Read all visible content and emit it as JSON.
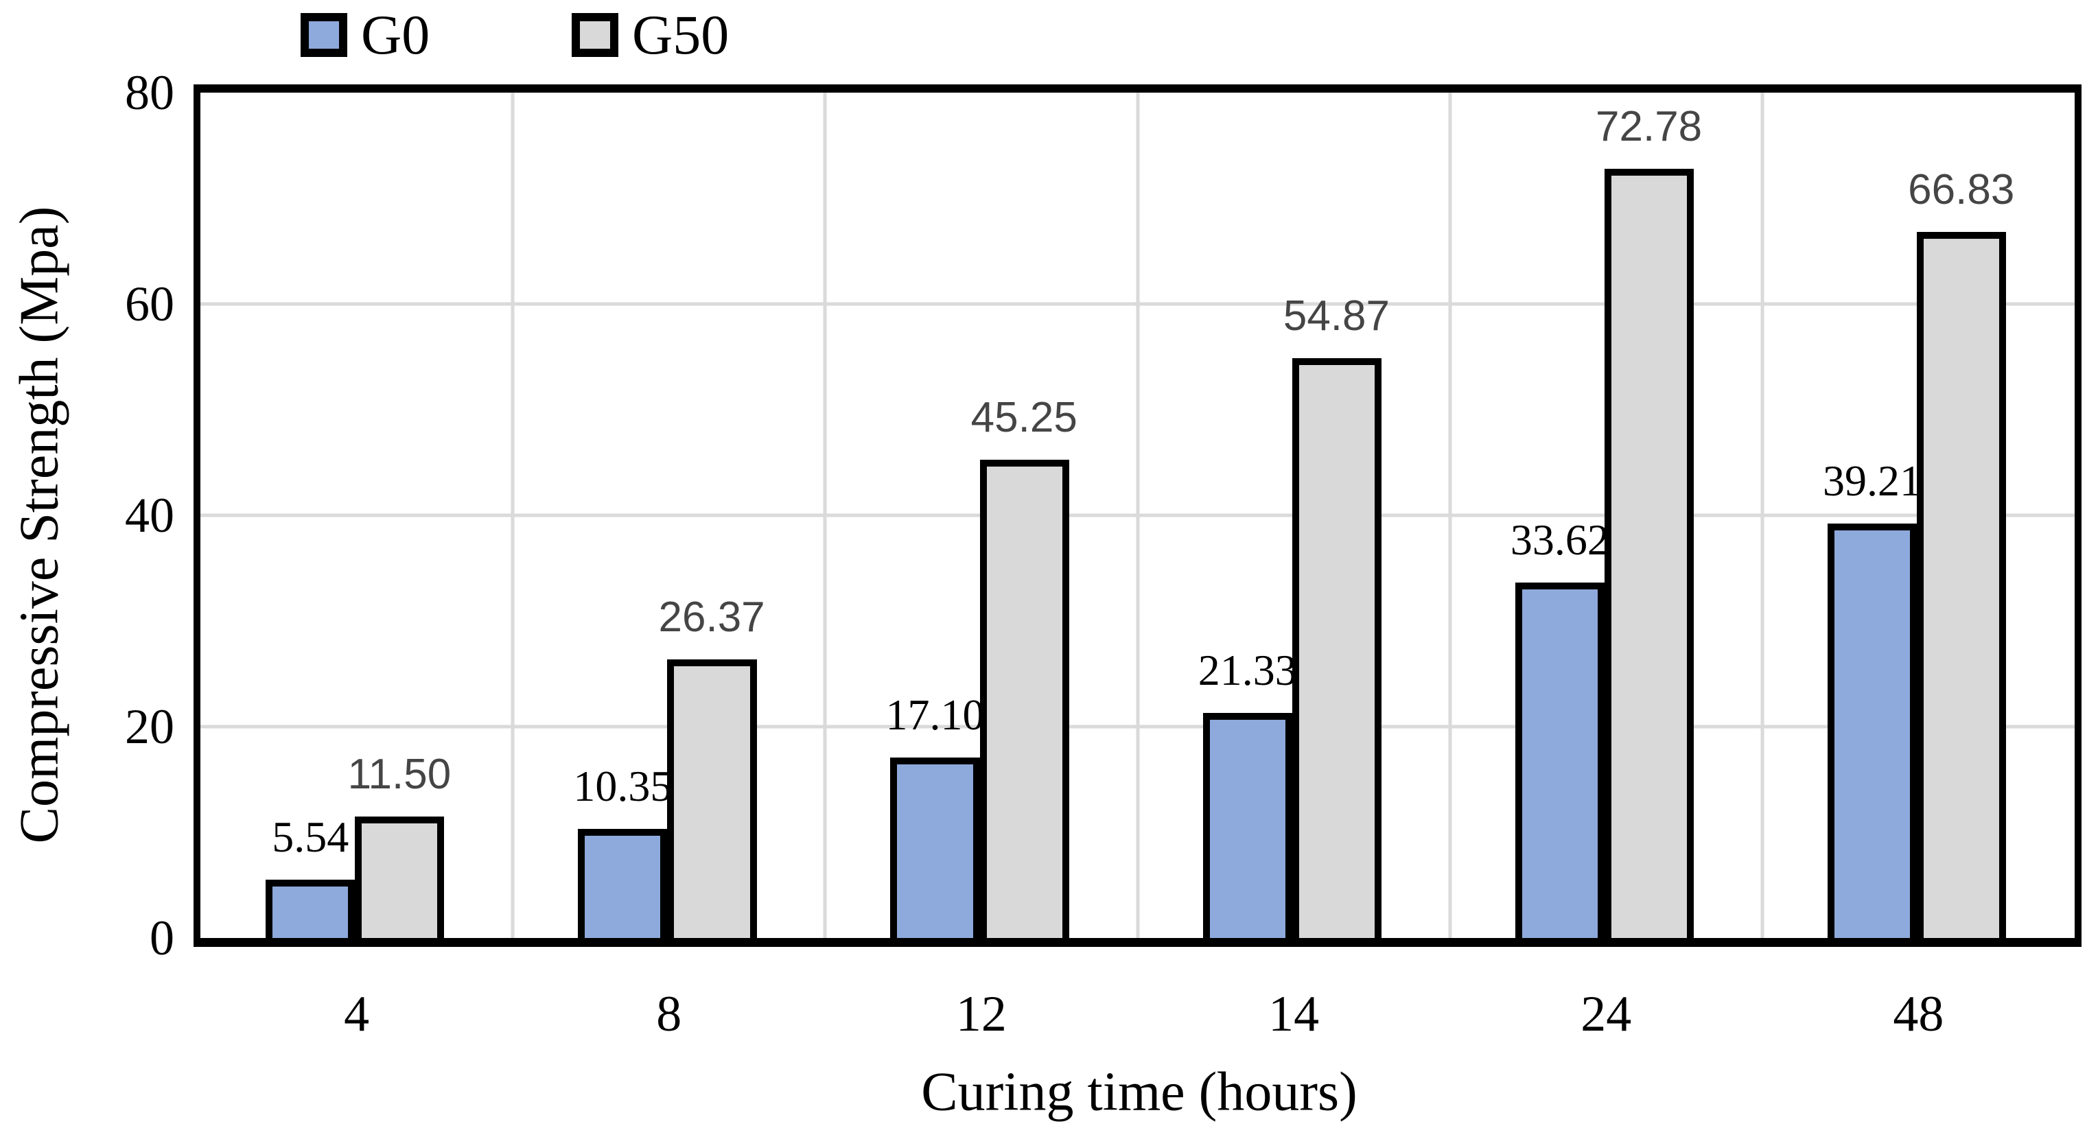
{
  "chart_data": {
    "type": "bar",
    "title": "",
    "xlabel": "Curing time (hours)",
    "ylabel": "Compressive Strength (Mpa)",
    "ylim": [
      0,
      80
    ],
    "yticks": [
      0,
      20,
      40,
      60,
      80
    ],
    "grid": true,
    "legend_position": "top-left",
    "categories": [
      "4",
      "8",
      "12",
      "14",
      "24",
      "48"
    ],
    "series": [
      {
        "name": "G0",
        "color": "#8EA9DB",
        "border_color": "#000000",
        "label_color": "#000000",
        "label_style": "serif",
        "values": [
          5.54,
          10.35,
          17.1,
          21.33,
          33.62,
          39.21
        ],
        "labels": [
          "5.54",
          "10.35",
          "17.10",
          "21.33",
          "33.62",
          "39.21"
        ]
      },
      {
        "name": "G50",
        "color": "#D9D9D9",
        "border_color": "#000000",
        "label_color": "#454545",
        "label_style": "sans",
        "values": [
          11.5,
          26.37,
          45.25,
          54.87,
          72.78,
          66.83
        ],
        "labels": [
          "11.50",
          "26.37",
          "45.25",
          "54.87",
          "72.78",
          "66.83"
        ]
      }
    ]
  },
  "colors": {
    "gridline": "#DADADA",
    "plot_border": "#000000",
    "background": "#FFFFFF"
  }
}
